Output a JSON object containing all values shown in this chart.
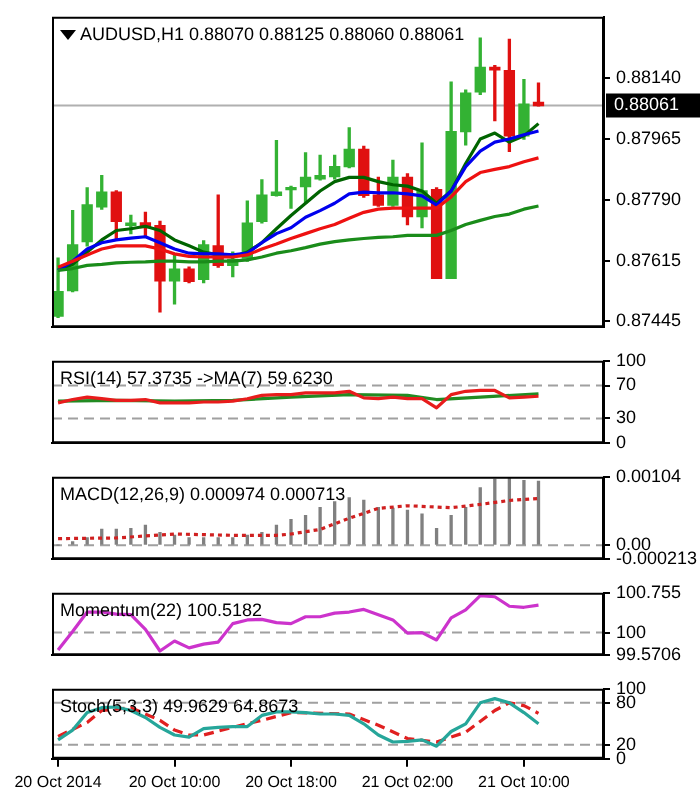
{
  "chart_data": [
    {
      "type": "candlestick",
      "title": "AUDUSD,H1 0.88070 0.88125 0.88060 0.88061",
      "x": [
        "2014-10-20T02:00",
        "2014-10-20T03:00",
        "2014-10-20T04:00",
        "2014-10-20T05:00",
        "2014-10-20T06:00",
        "2014-10-20T07:00",
        "2014-10-20T08:00",
        "2014-10-20T09:00",
        "2014-10-20T10:00",
        "2014-10-20T11:00",
        "2014-10-20T12:00",
        "2014-10-20T13:00",
        "2014-10-20T14:00",
        "2014-10-20T15:00",
        "2014-10-20T16:00",
        "2014-10-20T17:00",
        "2014-10-20T18:00",
        "2014-10-20T19:00",
        "2014-10-20T20:00",
        "2014-10-20T21:00",
        "2014-10-20T22:00",
        "2014-10-20T23:00",
        "2014-10-21T00:00",
        "2014-10-21T01:00",
        "2014-10-21T02:00",
        "2014-10-21T03:00",
        "2014-10-21T04:00",
        "2014-10-21T05:00",
        "2014-10-21T06:00",
        "2014-10-21T07:00",
        "2014-10-21T08:00",
        "2014-10-21T09:00",
        "2014-10-21T10:00",
        "2014-10-21T11:00"
      ],
      "ohlc": [
        [
          0.87458,
          0.87624,
          0.87454,
          0.87528
        ],
        [
          0.87531,
          0.8776,
          0.87528,
          0.87662
        ],
        [
          0.87671,
          0.87825,
          0.87659,
          0.87776
        ],
        [
          0.87771,
          0.8786,
          0.87764,
          0.87813
        ],
        [
          0.87813,
          0.87816,
          0.87676,
          0.87729
        ],
        [
          0.87718,
          0.87746,
          0.87694,
          0.87722
        ],
        [
          0.87725,
          0.87755,
          0.87685,
          0.87711
        ],
        [
          0.87717,
          0.87729,
          0.8747,
          0.87559
        ],
        [
          0.87559,
          0.87633,
          0.87493,
          0.87592
        ],
        [
          0.87592,
          0.87598,
          0.87554,
          0.87557
        ],
        [
          0.87563,
          0.87673,
          0.87554,
          0.87662
        ],
        [
          0.87659,
          0.87804,
          0.87598,
          0.87603
        ],
        [
          0.87603,
          0.87641,
          0.87571,
          0.8762
        ],
        [
          0.87624,
          0.87787,
          0.87615,
          0.87724
        ],
        [
          0.87729,
          0.87848,
          0.87725,
          0.87804
        ],
        [
          0.87804,
          0.8796,
          0.87802,
          0.87813
        ],
        [
          0.8782,
          0.87829,
          0.87767,
          0.87825
        ],
        [
          0.87829,
          0.87925,
          0.87781,
          0.87855
        ],
        [
          0.87851,
          0.87918,
          0.87848,
          0.8786
        ],
        [
          0.87857,
          0.87918,
          0.87851,
          0.87886
        ],
        [
          0.87886,
          0.87997,
          0.87883,
          0.87935
        ],
        [
          0.87935,
          0.87944,
          0.87799,
          0.87804
        ],
        [
          0.87804,
          0.87855,
          0.87773,
          0.87776
        ],
        [
          0.87776,
          0.87904,
          0.87773,
          0.87855
        ],
        [
          0.87855,
          0.87865,
          0.8772,
          0.87743
        ],
        [
          0.87743,
          0.87953,
          0.87711,
          0.87816
        ],
        [
          0.8782,
          0.87825,
          0.87566,
          0.87566
        ],
        [
          0.87566,
          0.88128,
          0.87566,
          0.87986
        ],
        [
          0.87986,
          0.88105,
          0.87948,
          0.88096
        ],
        [
          0.881,
          0.88254,
          0.88093,
          0.8817
        ],
        [
          0.8817,
          0.88175,
          0.88018,
          0.88163
        ],
        [
          0.88161,
          0.8825,
          0.8793,
          0.87974
        ],
        [
          0.87974,
          0.88135,
          0.87965,
          0.88065
        ],
        [
          0.8807,
          0.88125,
          0.8806,
          0.88061
        ]
      ],
      "colors": [
        "#33b233",
        "#33b233",
        "#33b233",
        "#33b233",
        "#e01010",
        "#33b233",
        "#e01010",
        "#e01010",
        "#33b233",
        "#e01010",
        "#33b233",
        "#e01010",
        "#33b233",
        "#33b233",
        "#33b233",
        "#33b233",
        "#33b233",
        "#33b233",
        "#33b233",
        "#33b233",
        "#33b233",
        "#e01010",
        "#e01010",
        "#33b233",
        "#e01010",
        "#33b233",
        "#e01010",
        "#33b233",
        "#33b233",
        "#33b233",
        "#e01010",
        "#e01010",
        "#33b233",
        "#e01010"
      ],
      "series": [
        {
          "type": "line",
          "color": "#1a8c1a",
          "values": [
            0.87589,
            0.87594,
            0.87603,
            0.87606,
            0.8761,
            0.87612,
            0.87613,
            0.87615,
            0.87615,
            0.87613,
            0.87613,
            0.87615,
            0.87615,
            0.87619,
            0.87627,
            0.87638,
            0.87645,
            0.87654,
            0.87664,
            0.87671,
            0.87676,
            0.8768,
            0.87683,
            0.87685,
            0.87689,
            0.87689,
            0.87689,
            0.87703,
            0.8772,
            0.87732,
            0.87743,
            0.8775,
            0.87764,
            0.87773
          ]
        },
        {
          "type": "line",
          "color": "#ee1111",
          "values": [
            0.87598,
            0.87615,
            0.87633,
            0.8765,
            0.87659,
            0.87659,
            0.87659,
            0.8765,
            0.87636,
            0.87629,
            0.87627,
            0.87627,
            0.87627,
            0.87633,
            0.8765,
            0.87664,
            0.8768,
            0.87694,
            0.87708,
            0.8772,
            0.87738,
            0.87755,
            0.87764,
            0.87767,
            0.87767,
            0.87767,
            0.87767,
            0.87799,
            0.87843,
            0.87869,
            0.87878,
            0.87886,
            0.879,
            0.87911
          ]
        },
        {
          "type": "line",
          "color": "#0000ee",
          "values": [
            0.87589,
            0.87615,
            0.8765,
            0.87668,
            0.87676,
            0.87681,
            0.87685,
            0.87668,
            0.8765,
            0.87638,
            0.87636,
            0.87636,
            0.87633,
            0.87638,
            0.87668,
            0.87694,
            0.87711,
            0.87741,
            0.8776,
            0.87781,
            0.87808,
            0.87813,
            0.87811,
            0.87811,
            0.87808,
            0.87802,
            0.87776,
            0.87816,
            0.87886,
            0.8793,
            0.87956,
            0.87965,
            0.87977,
            0.87988
          ]
        },
        {
          "type": "line",
          "color": "#006400",
          "values": [
            0.87589,
            0.87606,
            0.87641,
            0.87676,
            0.87703,
            0.87708,
            0.87715,
            0.87703,
            0.87676,
            0.87659,
            0.87641,
            0.87633,
            0.87627,
            0.87641,
            0.87668,
            0.87708,
            0.87746,
            0.87781,
            0.87816,
            0.87843,
            0.87855,
            0.87855,
            0.87843,
            0.87834,
            0.8783,
            0.87816,
            0.87781,
            0.87816,
            0.87895,
            0.87965,
            0.87982,
            0.87956,
            0.87974,
            0.88009
          ]
        }
      ],
      "xlim": [
        "2014-10-20T01:35",
        "2014-10-21T15:30"
      ],
      "ylim": [
        0.87426,
        0.88315
      ],
      "yticks": [
        {
          "value": 0.8814,
          "label": "0.88140"
        },
        0.87965,
        {
          "value": 0.8779,
          "label": "0.87790"
        },
        0.87615,
        0.87445
      ],
      "ref_lines": [
        {
          "axis": "y",
          "value": 0.88061,
          "label": "0.88061",
          "color": "#b0b0b0"
        }
      ],
      "tick_labels": "y"
    },
    {
      "type": "line",
      "title": "RSI(14) 57.3735 ->MA(7) 59.6230",
      "x": [
        "2014-10-20T02:00",
        "2014-10-20T03:00",
        "2014-10-20T04:00",
        "2014-10-20T05:00",
        "2014-10-20T06:00",
        "2014-10-20T07:00",
        "2014-10-20T08:00",
        "2014-10-20T09:00",
        "2014-10-20T10:00",
        "2014-10-20T11:00",
        "2014-10-20T12:00",
        "2014-10-20T13:00",
        "2014-10-20T14:00",
        "2014-10-20T15:00",
        "2014-10-20T16:00",
        "2014-10-20T17:00",
        "2014-10-20T18:00",
        "2014-10-20T19:00",
        "2014-10-20T20:00",
        "2014-10-20T21:00",
        "2014-10-20T22:00",
        "2014-10-20T23:00",
        "2014-10-21T00:00",
        "2014-10-21T01:00",
        "2014-10-21T02:00",
        "2014-10-21T03:00",
        "2014-10-21T04:00",
        "2014-10-21T05:00",
        "2014-10-21T06:00",
        "2014-10-21T07:00",
        "2014-10-21T08:00",
        "2014-10-21T09:00",
        "2014-10-21T10:00",
        "2014-10-21T11:00"
      ],
      "series": [
        {
          "color": "#e81c1c",
          "values": [
            49,
            53,
            56,
            54,
            52,
            52,
            53,
            49,
            49,
            49,
            50,
            50,
            51,
            54,
            58,
            59,
            59,
            61,
            61,
            61,
            63,
            55,
            54,
            56,
            54,
            54,
            43,
            59,
            63,
            64,
            64,
            55,
            56,
            57
          ]
        },
        {
          "color": "#228b22",
          "x": [
            "2014-10-20T02:00",
            "2014-10-20T06:00",
            "2014-10-20T10:00",
            "2014-10-20T14:00",
            "2014-10-20T18:00",
            "2014-10-20T22:00",
            "2014-10-21T02:00",
            "2014-10-21T04:00",
            "2014-10-21T07:00",
            "2014-10-21T11:00"
          ],
          "values": [
            51,
            52,
            51,
            52,
            56,
            59,
            58,
            53,
            56,
            60
          ]
        }
      ],
      "xlim": [
        "2014-10-20T01:35",
        "2014-10-21T15:30"
      ],
      "ylim": [
        0,
        100
      ],
      "yticks": [
        100,
        70,
        30,
        0
      ],
      "ref_lines": [
        {
          "axis": "y",
          "value": 70,
          "color": "#a0a0a0",
          "line_style": "dashed"
        },
        {
          "axis": "y",
          "value": 30,
          "color": "#a0a0a0",
          "line_style": "dashed"
        }
      ],
      "tick_labels": "y"
    },
    {
      "type": "bar",
      "title": "MACD(12,26,9) 0.000974 0.000713",
      "x": [
        "2014-10-20T02:00",
        "2014-10-20T03:00",
        "2014-10-20T04:00",
        "2014-10-20T05:00",
        "2014-10-20T06:00",
        "2014-10-20T07:00",
        "2014-10-20T08:00",
        "2014-10-20T09:00",
        "2014-10-20T10:00",
        "2014-10-20T11:00",
        "2014-10-20T12:00",
        "2014-10-20T13:00",
        "2014-10-20T14:00",
        "2014-10-20T15:00",
        "2014-10-20T16:00",
        "2014-10-20T17:00",
        "2014-10-20T18:00",
        "2014-10-20T19:00",
        "2014-10-20T20:00",
        "2014-10-20T21:00",
        "2014-10-20T22:00",
        "2014-10-20T23:00",
        "2014-10-21T00:00",
        "2014-10-21T01:00",
        "2014-10-21T02:00",
        "2014-10-21T03:00",
        "2014-10-21T04:00",
        "2014-10-21T05:00",
        "2014-10-21T06:00",
        "2014-10-21T07:00",
        "2014-10-21T08:00",
        "2014-10-21T09:00",
        "2014-10-21T10:00",
        "2014-10-21T11:00"
      ],
      "series": [
        {
          "color": "#808080",
          "values": [
            0,
            5e-05,
            0.00011,
            0.00024,
            0.00024,
            0.00025,
            0.0003,
            0.00019,
            0.00015,
            0.00011,
            0.00011,
            0.00011,
            0.00011,
            0.00015,
            0.00019,
            0.0003,
            0.00039,
            0.00045,
            0.00057,
            0.00066,
            0.00072,
            0.00068,
            0.00057,
            0.00056,
            0.00053,
            0.00047,
            0.00025,
            0.00045,
            0.00057,
            0.00087,
            0.001,
            0.00101,
            0.00098,
            0.00097
          ]
        },
        {
          "type": "line",
          "color": "#d02020",
          "line_style": "dotted",
          "x": [
            "2014-10-20T02:00",
            "2014-10-20T06:00",
            "2014-10-20T10:00",
            "2014-10-20T14:00",
            "2014-10-20T17:00",
            "2014-10-20T18:00",
            "2014-10-20T20:00",
            "2014-10-20T22:00",
            "2014-10-21T00:00",
            "2014-10-21T02:00",
            "2014-10-21T05:00",
            "2014-10-21T07:00",
            "2014-10-21T09:00",
            "2014-10-21T11:00"
          ],
          "values": [
            0.0001,
            0.00011,
            0.00017,
            0.00015,
            0.00015,
            0.00017,
            0.00024,
            0.00041,
            0.00056,
            0.0006,
            0.00057,
            0.00062,
            0.00068,
            0.00071
          ]
        }
      ],
      "xlim": [
        "2014-10-20T01:35",
        "2014-10-21T15:30"
      ],
      "ylim": [
        -0.000213,
        0.00104
      ],
      "yticks": [
        0.00104,
        {
          "value": 0,
          "label": "0.00"
        },
        -0.000213
      ],
      "ref_lines": [
        {
          "axis": "y",
          "value": 0,
          "color": "#a0a0a0",
          "line_style": "dashed"
        }
      ],
      "tick_labels": "y"
    },
    {
      "type": "line",
      "title": "Momentum(22) 100.5182",
      "x": [
        "2014-10-20T02:00",
        "2014-10-20T03:00",
        "2014-10-20T04:00",
        "2014-10-20T05:00",
        "2014-10-20T06:00",
        "2014-10-20T07:00",
        "2014-10-20T08:00",
        "2014-10-20T09:00",
        "2014-10-20T10:00",
        "2014-10-20T11:00",
        "2014-10-20T12:00",
        "2014-10-20T13:00",
        "2014-10-20T14:00",
        "2014-10-20T15:00",
        "2014-10-20T16:00",
        "2014-10-20T17:00",
        "2014-10-20T18:00",
        "2014-10-20T19:00",
        "2014-10-20T20:00",
        "2014-10-20T21:00",
        "2014-10-20T22:00",
        "2014-10-20T23:00",
        "2014-10-21T00:00",
        "2014-10-21T01:00",
        "2014-10-21T02:00",
        "2014-10-21T03:00",
        "2014-10-21T04:00",
        "2014-10-21T05:00",
        "2014-10-21T06:00",
        "2014-10-21T07:00",
        "2014-10-21T08:00",
        "2014-10-21T09:00",
        "2014-10-21T10:00",
        "2014-10-21T11:00"
      ],
      "series": [
        {
          "color": "#cc33cc",
          "values": [
            99.67,
            100.02,
            100.39,
            100.39,
            100.35,
            100.34,
            100.06,
            99.65,
            99.84,
            99.71,
            99.78,
            99.82,
            100.17,
            100.24,
            100.25,
            100.19,
            100.17,
            100.3,
            100.3,
            100.37,
            100.39,
            100.44,
            100.34,
            100.24,
            99.99,
            100.0,
            99.86,
            100.28,
            100.43,
            100.7,
            100.68,
            100.5,
            100.48,
            100.52
          ]
        }
      ],
      "xlim": [
        "2014-10-20T01:35",
        "2014-10-21T15:30"
      ],
      "ylim": [
        99.5706,
        100.755
      ],
      "yticks": [
        100.755,
        100,
        99.5706
      ],
      "ref_lines": [
        {
          "axis": "y",
          "value": 100,
          "color": "#a0a0a0",
          "line_style": "dashed"
        }
      ],
      "tick_labels": "y"
    },
    {
      "type": "line",
      "title": "Stoch(5,3,3) 49.9629 64.8673",
      "x": [
        "2014-10-20T02:00",
        "2014-10-20T03:00",
        "2014-10-20T04:00",
        "2014-10-20T05:00",
        "2014-10-20T06:00",
        "2014-10-20T07:00",
        "2014-10-20T08:00",
        "2014-10-20T09:00",
        "2014-10-20T10:00",
        "2014-10-20T11:00",
        "2014-10-20T12:00",
        "2014-10-20T13:00",
        "2014-10-20T14:00",
        "2014-10-20T15:00",
        "2014-10-20T16:00",
        "2014-10-20T17:00",
        "2014-10-20T18:00",
        "2014-10-20T19:00",
        "2014-10-20T20:00",
        "2014-10-20T21:00",
        "2014-10-20T22:00",
        "2014-10-20T23:00",
        "2014-10-21T00:00",
        "2014-10-21T01:00",
        "2014-10-21T02:00",
        "2014-10-21T03:00",
        "2014-10-21T04:00",
        "2014-10-21T05:00",
        "2014-10-21T06:00",
        "2014-10-21T07:00",
        "2014-10-21T08:00",
        "2014-10-21T09:00",
        "2014-10-21T10:00",
        "2014-10-21T11:00"
      ],
      "series": [
        {
          "color": "#26a69a",
          "values": [
            27,
            41,
            66,
            73,
            74,
            69,
            59,
            45,
            34,
            31,
            43,
            45,
            46,
            46,
            62,
            67,
            67,
            66,
            64,
            64,
            62,
            50,
            34,
            24,
            25,
            27,
            18,
            39,
            50,
            80,
            86,
            80,
            66,
            50
          ]
        },
        {
          "color": "#e02020",
          "line_style": "dashed",
          "x": [
            "2014-10-20T02:00",
            "2014-10-20T04:00",
            "2014-10-20T05:00",
            "2014-10-20T07:00",
            "2014-10-20T09:00",
            "2014-10-20T10:00",
            "2014-10-20T11:00",
            "2014-10-20T12:00",
            "2014-10-20T14:00",
            "2014-10-20T16:00",
            "2014-10-20T18:00",
            "2014-10-20T22:00",
            "2014-10-21T00:00",
            "2014-10-21T02:00",
            "2014-10-21T04:00",
            "2014-10-21T06:00",
            "2014-10-21T08:00",
            "2014-10-21T09:00",
            "2014-10-21T10:00",
            "2014-10-21T11:00"
          ],
          "values": [
            32,
            52,
            69,
            73,
            55,
            41,
            34,
            34,
            45,
            55,
            66,
            64,
            48,
            29,
            24,
            38,
            69,
            80,
            76,
            65
          ]
        }
      ],
      "xlim": [
        "2014-10-20T01:35",
        "2014-10-21T15:30"
      ],
      "xticks": [
        {
          "value": "2014-10-20T02:00",
          "label": "20 Oct 2014"
        },
        {
          "value": "2014-10-20T10:00",
          "label": "20 Oct 10:00"
        },
        {
          "value": "2014-10-20T18:00",
          "label": "20 Oct 18:00"
        },
        {
          "value": "2014-10-21T02:00",
          "label": "21 Oct 02:00"
        },
        {
          "value": "2014-10-21T10:00",
          "label": "21 Oct 10:00"
        }
      ],
      "ylim": [
        0,
        100
      ],
      "yticks": [
        100,
        80,
        20,
        0
      ],
      "ref_lines": [
        {
          "axis": "y",
          "value": 80,
          "color": "#a0a0a0",
          "line_style": "dashed"
        },
        {
          "axis": "y",
          "value": 20,
          "color": "#a0a0a0",
          "line_style": "dashed"
        }
      ]
    }
  ]
}
